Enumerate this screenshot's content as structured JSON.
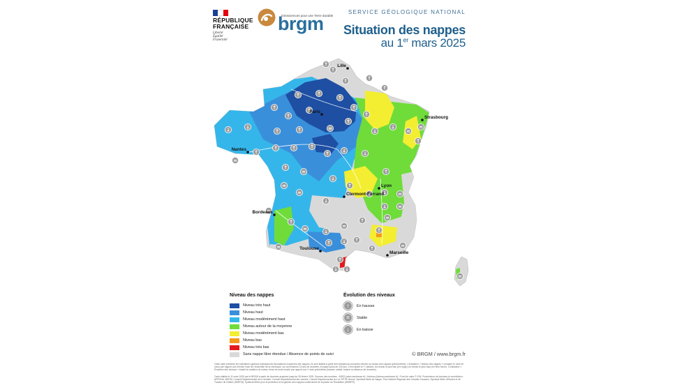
{
  "header": {
    "republic_lines": [
      "RÉPUBLIQUE",
      "FRANÇAISE"
    ],
    "motto_lines": [
      "Liberté",
      "Égalité",
      "Fraternité"
    ],
    "brgm_tagline": "Géosciences pour une Terre durable",
    "brgm_word": "brgm",
    "service": "SERVICE GÉOLOGIQUE NATIONAL",
    "title": "Situation des nappes",
    "date_prefix": "au 1",
    "date_sup": "er",
    "date_suffix": " mars 2025"
  },
  "colors": {
    "tres_haut": "#1e4fa3",
    "haut": "#3a8fdb",
    "moderement_haut": "#35b6ea",
    "moyenne": "#6fdc3a",
    "moderement_bas": "#f3ee31",
    "bas": "#f39a1c",
    "tres_bas": "#e41a1c",
    "absence": "#d9d9d9"
  },
  "legend": {
    "title": "Niveau des nappes",
    "items": [
      {
        "label": "Niveau très haut",
        "color": "#1e4fa3"
      },
      {
        "label": "Niveau haut",
        "color": "#3a8fdb"
      },
      {
        "label": "Niveau modérément haut",
        "color": "#35b6ea"
      },
      {
        "label": "Niveau autour de la moyenne",
        "color": "#6fdc3a"
      },
      {
        "label": "Niveau modérément bas",
        "color": "#f3ee31"
      },
      {
        "label": "Niveau bas",
        "color": "#f39a1c"
      },
      {
        "label": "Niveau très bas",
        "color": "#e41a1c"
      },
      {
        "label": "Sans nappe libre étendue / Absence de points de suivi",
        "color": "#d9d9d9"
      }
    ]
  },
  "evolution": {
    "title": "Évolution des niveaux",
    "items": [
      {
        "label": "En hausse",
        "icon": "arrow-up-icon",
        "glyph": "↑"
      },
      {
        "label": "Stable",
        "icon": "equals-icon",
        "glyph": "="
      },
      {
        "label": "En baisse",
        "icon": "arrow-down-icon",
        "glyph": "↓"
      }
    ]
  },
  "cities": [
    "Lille",
    "Paris",
    "Strasbourg",
    "Nantes",
    "Lyon",
    "Clermont-Ferrand",
    "Bordeaux",
    "Toulouse",
    "Marseille"
  ],
  "copyright": "© BRGM / www.brgm.fr",
  "fine_print": [
    "Cette carte présente les indicateurs globaux traduisant les fluctuations moyennes des nappes. Ils sont établis à partir des indicateurs ponctuels relevés au niveau des nappes (piézomètres). L'indicateur « Niveau des nappes » compare le mois en cours par rapport aux mêmes mois de l'ensemble de la chronique, sur au minimum 15 ans de données, et jusqu'à plus de 100 ans. Il est réparti en 7 classes, du niveau le plus bas (en rouge) au niveau le plus haut (en bleu foncé). L'indicateur « Évolution des niveaux » traduit la variation du niveau d'eau du mois écoulé par rapport aux 2 mois précédents (hausse, stable, baisse ou absence de données).",
    "Carte établie le 11 mars 2025 par le BRGM à partir de données acquises jusqu'au 28 février 2025. Sources des données : ADES (ades.eaufrance.fr) / Hubeau (hubeau.eaufrance.fr) / Fond de carte © IGN. Producteurs de données et contribution : APRONA, BRGM, Conseil Départemental de la Vendée, Conseil Départemental des Landes, Conseil Départemental du Lot, EPTB Vienne, Syndicat Mixte du Nappe, Parc Naturel Régional des Grandes Causses, Syndicat Mixte d'Études et de Travaux de l'Astien (SMETA), Syndicat Mixte pour la protection et la gestion des nappes souterraines de la plaine du Roussillon (SMNPR)."
  ]
}
